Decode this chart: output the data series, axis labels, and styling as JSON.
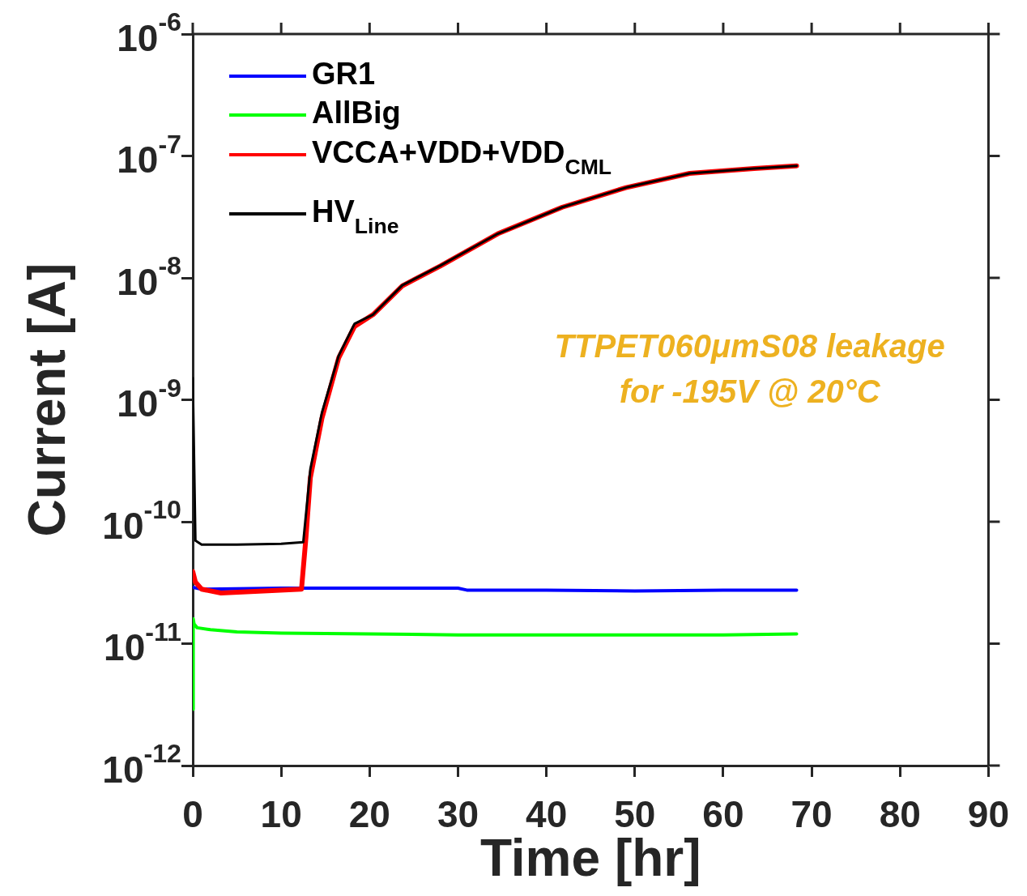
{
  "chart_data": {
    "type": "line",
    "xlabel": "Time [hr]",
    "ylabel": "Current [A]",
    "log": true,
    "legend": "top left",
    "marker": "none",
    "line_style": "solid",
    "xlim": [
      0,
      90
    ],
    "xticks": [
      0,
      10,
      20,
      30,
      40,
      50,
      60,
      70,
      80,
      90
    ],
    "ylim": [
      1e-12,
      1e-06
    ],
    "yticks": [
      {
        "value": 1e-12,
        "label": "10$^{-12}$"
      },
      {
        "value": 1e-11,
        "label": "10$^{-11}$"
      },
      {
        "value": 1e-10,
        "label": "10$^{-10}$"
      },
      {
        "value": 1e-09,
        "label": "10$^{-9}$"
      },
      {
        "value": 1e-08,
        "label": "10$^{-8}$"
      },
      {
        "value": 1e-07,
        "label": "10$^{-7}$"
      },
      {
        "value": 1e-06,
        "label": "10$^{-6}$"
      }
    ],
    "annotations": [
      "TTPET060μmS08 leakage\nfor -195V @ 20°C"
    ],
    "series": [
      {
        "name": "GR1",
        "color": "#0000ff",
        "x": [
          0,
          1,
          10,
          20,
          30,
          31,
          40,
          50,
          60,
          68.3
        ],
        "values": [
          2.9e-11,
          2.8e-11,
          2.85e-11,
          2.85e-11,
          2.85e-11,
          2.75e-11,
          2.75e-11,
          2.7e-11,
          2.75e-11,
          2.75e-11
        ]
      },
      {
        "name": "AllBig",
        "color": "#00ff00",
        "x": [
          0,
          0.05,
          0.15,
          0.5,
          2,
          5,
          10,
          20,
          30,
          40,
          50,
          60,
          68.3
        ],
        "values": [
          2.9e-12,
          1.6e-11,
          1.45e-11,
          1.35e-11,
          1.3e-11,
          1.25e-11,
          1.22e-11,
          1.2e-11,
          1.18e-11,
          1.18e-11,
          1.18e-11,
          1.18e-11,
          1.2e-11
        ]
      },
      {
        "name": "VCCA+VDD+VDD$_{CML}$",
        "color": "#ff0000",
        "x": [
          0,
          0.3,
          1,
          3.2,
          8,
          12.3,
          12.8,
          13.3,
          14.6,
          16.5,
          18.3,
          20.4,
          23.7,
          28,
          34.5,
          41.8,
          49,
          56.2,
          63.5,
          68.3
        ],
        "values": [
          3.9e-11,
          3.2e-11,
          2.8e-11,
          2.6e-11,
          2.7e-11,
          2.8e-11,
          7.4e-11,
          2.3e-10,
          7e-10,
          2.2e-09,
          4e-09,
          5e-09,
          8.6e-09,
          1.25e-08,
          2.3e-08,
          3.8e-08,
          5.5e-08,
          7.2e-08,
          7.9e-08,
          8.3e-08
        ]
      },
      {
        "name": "HV$_{Line}$",
        "color": "#000000",
        "x": [
          0,
          0.3,
          1,
          5,
          10,
          12.5,
          13.3,
          14.6,
          16.5,
          18.3,
          20.4,
          23.7,
          28,
          34.5,
          41.8,
          49,
          56.2,
          63.5,
          68.3
        ],
        "values": [
          1.5e-09,
          7e-11,
          6.5e-11,
          6.5e-11,
          6.6e-11,
          6.8e-11,
          2.7e-10,
          7.8e-10,
          2.3e-09,
          4.2e-09,
          5e-09,
          8.7e-09,
          1.26e-08,
          2.3e-08,
          3.8e-08,
          5.5e-08,
          7.2e-08,
          7.9e-08,
          8.3e-08
        ]
      }
    ]
  }
}
